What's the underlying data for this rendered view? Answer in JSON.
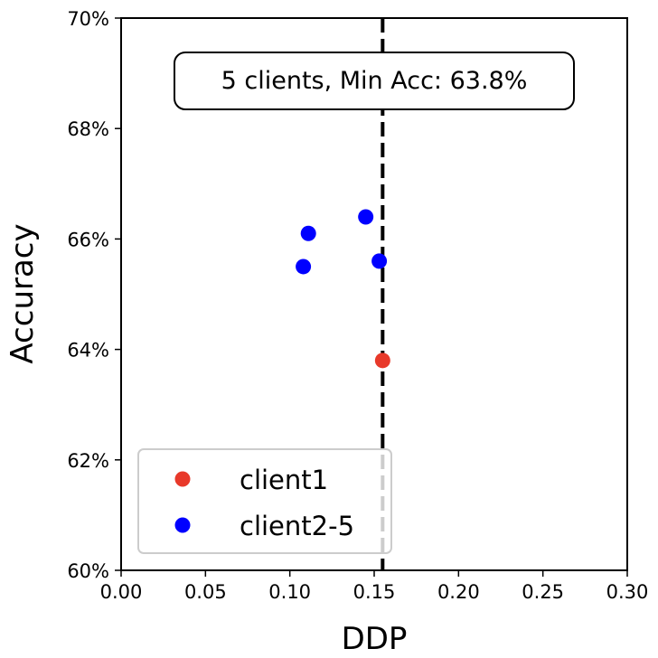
{
  "chart_data": {
    "type": "scatter",
    "xlabel": "DDP",
    "ylabel": "Accuracy",
    "xlim": [
      0.0,
      0.3
    ],
    "ylim": [
      60,
      70
    ],
    "x_ticks": [
      "0.00",
      "0.05",
      "0.10",
      "0.15",
      "0.20",
      "0.25",
      "0.30"
    ],
    "y_ticks": [
      "60%",
      "62%",
      "64%",
      "66%",
      "68%",
      "70%"
    ],
    "x_tick_values": [
      0.0,
      0.05,
      0.1,
      0.15,
      0.2,
      0.25,
      0.3
    ],
    "y_tick_values": [
      60,
      62,
      64,
      66,
      68,
      70
    ],
    "grid": false,
    "legend_position": "bottom-left",
    "annotation": "5 clients, Min Acc: 63.8%",
    "reference_line": {
      "orientation": "vertical",
      "x": 0.155,
      "style": "dashed",
      "color": "#000000"
    },
    "series": [
      {
        "name": "client1",
        "color": "#e8392a",
        "points": [
          {
            "x": 0.155,
            "y": 63.8
          }
        ]
      },
      {
        "name": "client2-5",
        "color": "#0000ff",
        "points": [
          {
            "x": 0.145,
            "y": 66.4
          },
          {
            "x": 0.111,
            "y": 66.1
          },
          {
            "x": 0.108,
            "y": 65.5
          },
          {
            "x": 0.153,
            "y": 65.6
          }
        ]
      }
    ]
  }
}
